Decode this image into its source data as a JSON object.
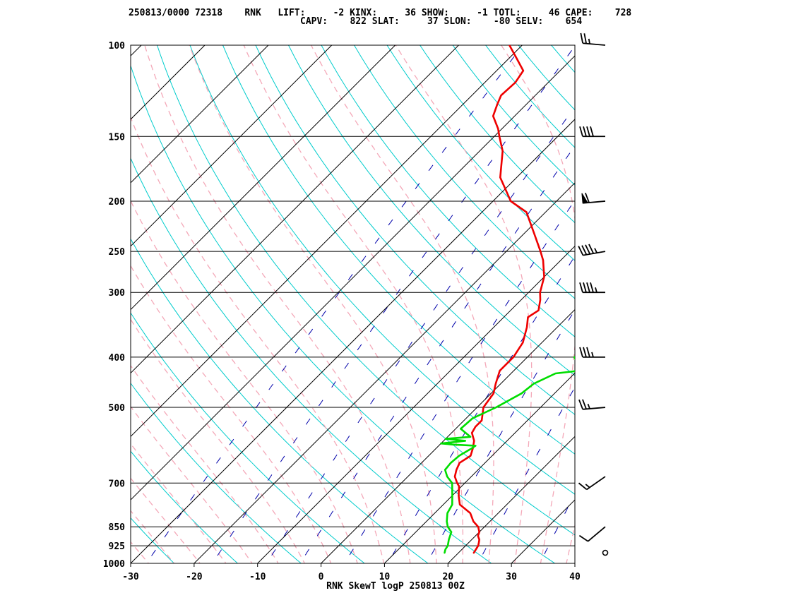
{
  "header": {
    "line1": "250813/0000 72318    RNK   LIFT:     -2 KINX:     36 SHOW:     -1 TOTL:     46 CAPE:    728",
    "line2": "CAPV:    822 SLAT:     37 SLON:    -80 SELV:    654"
  },
  "footer": "RNK SkewT logP 250813 00Z",
  "chart_data": {
    "type": "line",
    "title": "RNK SkewT logP 250813 00Z",
    "station": "RNK",
    "station_id": "72318",
    "date_time": "250813/0000",
    "indices": {
      "LIFT": -2,
      "KINX": 36,
      "SHOW": -1,
      "TOTL": 46,
      "CAPE": 728,
      "CAPV": 822,
      "SLAT": 37,
      "SLON": -80,
      "SELV": 654
    },
    "x_axis": {
      "ticks": [
        -30,
        -20,
        -10,
        0,
        10,
        20,
        30,
        40
      ],
      "range": [
        -30,
        40
      ]
    },
    "y_axis": {
      "scale": "log",
      "ticks": [
        100,
        150,
        200,
        250,
        300,
        400,
        500,
        700,
        850,
        925,
        1000
      ],
      "range": [
        1000,
        100
      ]
    },
    "colors": {
      "temperature": "#ee0000",
      "dewpoint": "#00dd00",
      "dry_adiabats": "#00cccc",
      "moist_adiabats": "#f4a8b8",
      "mixing_ratio": "#0000aa",
      "isotherms": "#000000",
      "isobars": "#000000"
    },
    "series": [
      {
        "p": [
          954,
          940,
          925,
          912,
          900,
          885,
          870,
          850,
          830,
          800,
          770,
          740,
          710,
          700,
          680,
          660,
          640,
          620,
          600,
          580,
          560,
          545,
          530,
          500,
          470,
          450,
          425,
          400,
          375,
          350,
          335,
          325,
          310,
          300,
          280,
          260,
          250,
          230,
          210,
          200,
          180,
          160,
          150,
          145,
          137,
          130,
          125,
          118,
          112,
          106,
          100
        ],
        "values": [
          22.4,
          22.2,
          22.0,
          21.6,
          21.2,
          20.4,
          20.0,
          19.0,
          17.4,
          15.6,
          12.6,
          11.0,
          9.6,
          8.8,
          7.4,
          6.6,
          6.0,
          6.6,
          5.8,
          4.8,
          3.2,
          2.8,
          2.8,
          1.0,
          0.4,
          -0.8,
          -2.2,
          -2.2,
          -3.0,
          -4.8,
          -6.2,
          -5.6,
          -7.0,
          -8.2,
          -10.0,
          -12.8,
          -14.6,
          -18.6,
          -23.0,
          -27.2,
          -32.6,
          -36.4,
          -39.2,
          -40.6,
          -43.4,
          -44.6,
          -45.4,
          -45.2,
          -45.8,
          -48.8,
          -52.0
        ]
      },
      {
        "p": [
          954,
          940,
          925,
          900,
          870,
          850,
          830,
          800,
          770,
          740,
          700,
          680,
          660,
          640,
          620,
          600,
          593,
          590,
          587,
          580,
          575,
          570,
          550,
          525,
          500,
          470,
          450,
          430,
          420,
          418,
          400,
          385,
          370,
          350,
          340,
          325,
          315,
          300,
          295,
          280,
          270,
          250,
          240,
          230,
          215,
          200,
          195,
          190,
          175,
          160,
          150,
          140,
          130,
          120,
          112,
          106,
          100
        ],
        "values": [
          17.8,
          17.4,
          17.2,
          16.4,
          15.6,
          14.2,
          13.2,
          12.0,
          11.4,
          10.0,
          8.0,
          6.2,
          4.8,
          4.6,
          4.8,
          5.6,
          5.8,
          2.2,
          0.0,
          3.4,
          0.0,
          3.6,
          0.8,
          1.0,
          3.0,
          4.8,
          5.2,
          7.0,
          13.4,
          9.8,
          7.4,
          10.0,
          8.0,
          9.2,
          5.8,
          7.8,
          6.4,
          7.0,
          7.2,
          5.2,
          4.0,
          4.2,
          2.6,
          3.0,
          0.4,
          -4.4,
          -6.2,
          -6.8,
          -7.8,
          -9.4,
          -13.2,
          -15.6,
          -17.6,
          -20.0,
          -21.8,
          -24.6,
          -30.0
        ]
      }
    ],
    "wind_barbs": [
      {
        "p": 954,
        "dir": 0,
        "speed": 0
      },
      {
        "p": 850,
        "dir": 230,
        "speed": 10
      },
      {
        "p": 680,
        "dir": 235,
        "speed": 15
      },
      {
        "p": 500,
        "dir": 265,
        "speed": 25
      },
      {
        "p": 400,
        "dir": 270,
        "speed": 35
      },
      {
        "p": 300,
        "dir": 270,
        "speed": 45
      },
      {
        "p": 250,
        "dir": 260,
        "speed": 45
      },
      {
        "p": 200,
        "dir": 265,
        "speed": 60
      },
      {
        "p": 150,
        "dir": 270,
        "speed": 40
      },
      {
        "p": 100,
        "dir": 275,
        "speed": 25
      }
    ]
  }
}
